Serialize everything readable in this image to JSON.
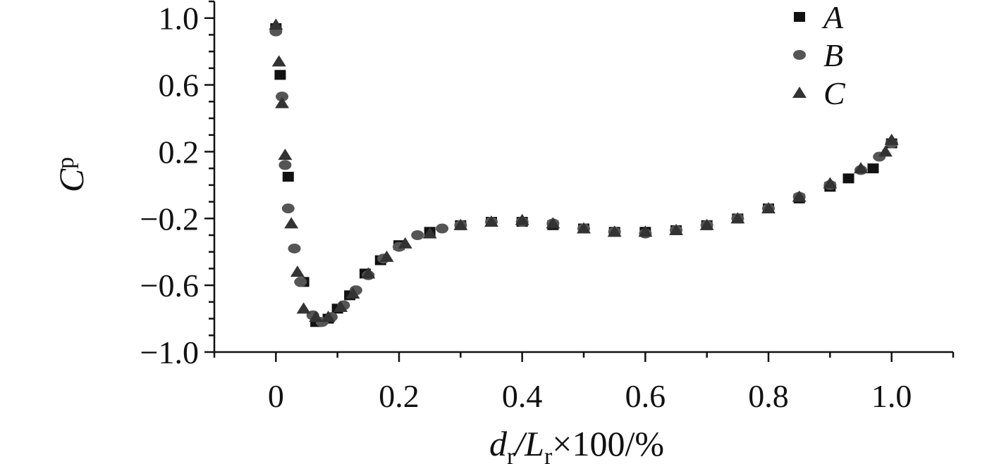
{
  "chart_data": {
    "type": "scatter",
    "xlabel": {
      "main": "d",
      "sub1": "r",
      "mid": "/L",
      "sub2": "r",
      "tail": "×100/%"
    },
    "ylabel": {
      "main": "C",
      "sub": "p"
    },
    "xlim": [
      -0.1,
      1.1
    ],
    "ylim": [
      -1.0,
      1.1
    ],
    "xticks": [
      {
        "v": 0,
        "label": "0"
      },
      {
        "v": 0.2,
        "label": "0.2"
      },
      {
        "v": 0.4,
        "label": "0.4"
      },
      {
        "v": 0.6,
        "label": "0.6"
      },
      {
        "v": 0.8,
        "label": "0.8"
      },
      {
        "v": 1.0,
        "label": "1.0"
      }
    ],
    "yticks": [
      {
        "v": 1.0,
        "label": "1.0"
      },
      {
        "v": 0.6,
        "label": "0.6"
      },
      {
        "v": 0.2,
        "label": "0.2"
      },
      {
        "v": -0.2,
        "label": "−0.2"
      },
      {
        "v": -0.6,
        "label": "−0.6"
      },
      {
        "v": -1.0,
        "label": "−1.0"
      }
    ],
    "legend_position": "top-right",
    "colors": {
      "A": "#111111",
      "B": "#555555",
      "C": "#333333"
    },
    "series": [
      {
        "name": "A",
        "marker": "square",
        "points": [
          [
            0.0,
            0.94
          ],
          [
            0.007,
            0.66
          ],
          [
            0.02,
            0.05
          ],
          [
            0.045,
            -0.58
          ],
          [
            0.065,
            -0.82
          ],
          [
            0.085,
            -0.8
          ],
          [
            0.1,
            -0.74
          ],
          [
            0.12,
            -0.66
          ],
          [
            0.145,
            -0.53
          ],
          [
            0.17,
            -0.45
          ],
          [
            0.2,
            -0.36
          ],
          [
            0.25,
            -0.28
          ],
          [
            0.3,
            -0.24
          ],
          [
            0.35,
            -0.22
          ],
          [
            0.4,
            -0.22
          ],
          [
            0.45,
            -0.24
          ],
          [
            0.5,
            -0.26
          ],
          [
            0.55,
            -0.28
          ],
          [
            0.6,
            -0.28
          ],
          [
            0.65,
            -0.27
          ],
          [
            0.7,
            -0.24
          ],
          [
            0.75,
            -0.2
          ],
          [
            0.8,
            -0.14
          ],
          [
            0.85,
            -0.08
          ],
          [
            0.9,
            -0.01
          ],
          [
            0.93,
            0.04
          ],
          [
            0.97,
            0.1
          ],
          [
            1.0,
            0.25
          ]
        ]
      },
      {
        "name": "B",
        "marker": "circle",
        "points": [
          [
            0.0,
            0.92
          ],
          [
            0.01,
            0.53
          ],
          [
            0.015,
            0.12
          ],
          [
            0.02,
            -0.14
          ],
          [
            0.03,
            -0.38
          ],
          [
            0.04,
            -0.58
          ],
          [
            0.06,
            -0.78
          ],
          [
            0.075,
            -0.82
          ],
          [
            0.09,
            -0.79
          ],
          [
            0.11,
            -0.72
          ],
          [
            0.13,
            -0.63
          ],
          [
            0.15,
            -0.54
          ],
          [
            0.175,
            -0.44
          ],
          [
            0.2,
            -0.37
          ],
          [
            0.23,
            -0.3
          ],
          [
            0.27,
            -0.26
          ],
          [
            0.3,
            -0.24
          ],
          [
            0.35,
            -0.22
          ],
          [
            0.4,
            -0.22
          ],
          [
            0.45,
            -0.23
          ],
          [
            0.5,
            -0.26
          ],
          [
            0.55,
            -0.28
          ],
          [
            0.6,
            -0.29
          ],
          [
            0.65,
            -0.27
          ],
          [
            0.7,
            -0.24
          ],
          [
            0.75,
            -0.2
          ],
          [
            0.8,
            -0.14
          ],
          [
            0.85,
            -0.07
          ],
          [
            0.9,
            0.0
          ],
          [
            0.95,
            0.09
          ],
          [
            0.98,
            0.17
          ],
          [
            1.0,
            0.25
          ]
        ]
      },
      {
        "name": "C",
        "marker": "triangle",
        "points": [
          [
            0.0,
            0.96
          ],
          [
            0.005,
            0.74
          ],
          [
            0.01,
            0.49
          ],
          [
            0.015,
            0.18
          ],
          [
            0.025,
            -0.23
          ],
          [
            0.035,
            -0.52
          ],
          [
            0.045,
            -0.74
          ],
          [
            0.065,
            -0.79
          ],
          [
            0.085,
            -0.79
          ],
          [
            0.105,
            -0.73
          ],
          [
            0.125,
            -0.65
          ],
          [
            0.15,
            -0.53
          ],
          [
            0.18,
            -0.43
          ],
          [
            0.21,
            -0.35
          ],
          [
            0.25,
            -0.29
          ],
          [
            0.3,
            -0.24
          ],
          [
            0.35,
            -0.22
          ],
          [
            0.4,
            -0.21
          ],
          [
            0.45,
            -0.23
          ],
          [
            0.5,
            -0.26
          ],
          [
            0.55,
            -0.28
          ],
          [
            0.6,
            -0.28
          ],
          [
            0.65,
            -0.27
          ],
          [
            0.7,
            -0.24
          ],
          [
            0.75,
            -0.2
          ],
          [
            0.8,
            -0.14
          ],
          [
            0.85,
            -0.07
          ],
          [
            0.9,
            0.01
          ],
          [
            0.95,
            0.1
          ],
          [
            0.99,
            0.2
          ],
          [
            1.0,
            0.27
          ]
        ]
      }
    ]
  }
}
